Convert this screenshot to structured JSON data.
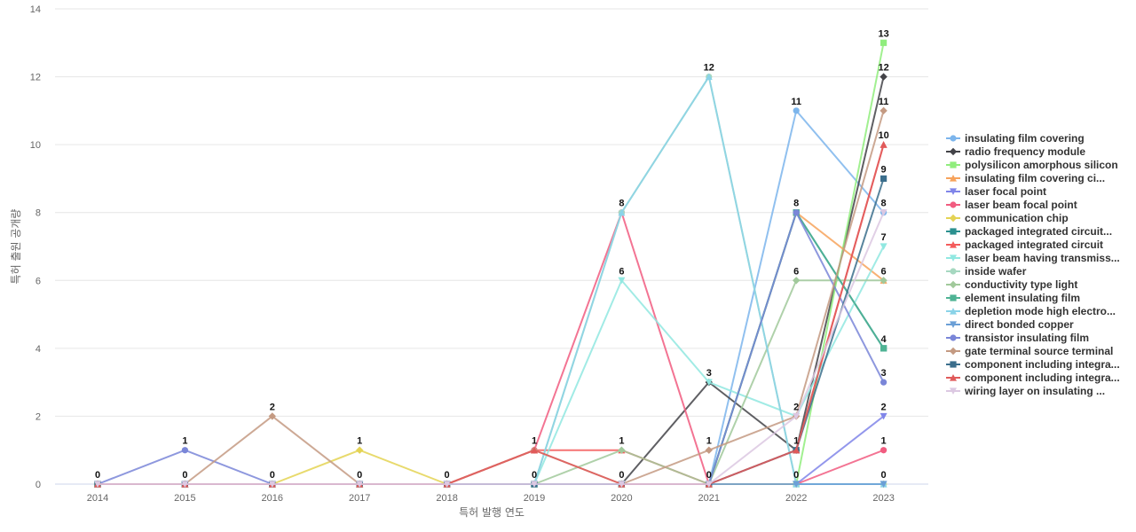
{
  "chart_data": {
    "type": "line",
    "title": "",
    "xlabel": "특허 발행 연도",
    "ylabel": "특허 출원 공개량",
    "x": [
      "2014",
      "2015",
      "2016",
      "2017",
      "2018",
      "2019",
      "2020",
      "2021",
      "2022",
      "2023"
    ],
    "ylim": [
      0,
      14
    ],
    "yticks": [
      0,
      2,
      4,
      6,
      8,
      10,
      12,
      14
    ],
    "grid": true,
    "legend_position": "right",
    "series": [
      {
        "name": "insulating film covering",
        "color": "#7cb5ec",
        "marker": "circle",
        "values": [
          0,
          0,
          0,
          0,
          0,
          0,
          0,
          0,
          11,
          8
        ]
      },
      {
        "name": "radio frequency module",
        "color": "#434348",
        "marker": "diamond",
        "values": [
          0,
          0,
          0,
          0,
          0,
          0,
          0,
          3,
          1,
          12
        ]
      },
      {
        "name": "polysilicon amorphous silicon",
        "color": "#90ed7d",
        "marker": "square",
        "values": [
          0,
          0,
          0,
          0,
          0,
          0,
          0,
          0,
          0,
          13
        ]
      },
      {
        "name": "insulating film covering ci...",
        "color": "#f7a35c",
        "marker": "triangle",
        "values": [
          0,
          0,
          0,
          0,
          0,
          0,
          0,
          0,
          8,
          6
        ]
      },
      {
        "name": "laser focal point",
        "color": "#8085e9",
        "marker": "triangle-down",
        "values": [
          0,
          0,
          0,
          0,
          0,
          0,
          0,
          0,
          0,
          2
        ]
      },
      {
        "name": "laser beam focal point",
        "color": "#f15c80",
        "marker": "circle",
        "values": [
          0,
          0,
          0,
          0,
          0,
          1,
          8,
          0,
          0,
          1
        ]
      },
      {
        "name": "communication chip",
        "color": "#e4d354",
        "marker": "diamond",
        "values": [
          0,
          0,
          0,
          1,
          0,
          0,
          0,
          0,
          0,
          0
        ]
      },
      {
        "name": "packaged integrated circuit...",
        "color": "#2b908f",
        "marker": "square",
        "values": [
          0,
          0,
          0,
          0,
          0,
          0,
          0,
          0,
          8,
          4
        ]
      },
      {
        "name": "packaged integrated circuit",
        "color": "#f45b5b",
        "marker": "triangle",
        "values": [
          0,
          0,
          0,
          0,
          0,
          1,
          1,
          0,
          1,
          10
        ]
      },
      {
        "name": "laser beam having transmiss...",
        "color": "#91e8e1",
        "marker": "triangle-down",
        "values": [
          0,
          0,
          0,
          0,
          0,
          0,
          6,
          3,
          2,
          7
        ]
      },
      {
        "name": "inside wafer",
        "color": "#a6d8c0",
        "marker": "circle",
        "values": [
          0,
          0,
          0,
          0,
          0,
          0,
          8,
          12,
          0,
          0
        ]
      },
      {
        "name": "conductivity type light",
        "color": "#a1c99b",
        "marker": "diamond",
        "values": [
          0,
          0,
          0,
          0,
          0,
          0,
          1,
          0,
          6,
          6
        ]
      },
      {
        "name": "element insulating film",
        "color": "#4fb394",
        "marker": "square",
        "values": [
          0,
          0,
          0,
          0,
          0,
          0,
          0,
          0,
          8,
          4
        ]
      },
      {
        "name": "depletion mode high electro...",
        "color": "#8ad3e8",
        "marker": "triangle",
        "values": [
          0,
          0,
          0,
          0,
          0,
          0,
          8,
          12,
          0,
          0
        ]
      },
      {
        "name": "direct bonded copper",
        "color": "#6b9fd6",
        "marker": "triangle-down",
        "values": [
          0,
          0,
          0,
          0,
          0,
          0,
          0,
          0,
          0,
          0
        ]
      },
      {
        "name": "transistor insulating film",
        "color": "#7a86d8",
        "marker": "circle",
        "values": [
          0,
          1,
          0,
          0,
          0,
          0,
          0,
          0,
          8,
          3
        ]
      },
      {
        "name": "gate terminal source terminal",
        "color": "#c49a82",
        "marker": "diamond",
        "values": [
          0,
          0,
          2,
          0,
          0,
          1,
          0,
          1,
          2,
          11
        ]
      },
      {
        "name": "component including integra...",
        "color": "#3b6e8c",
        "marker": "square",
        "values": [
          0,
          0,
          0,
          0,
          0,
          0,
          0,
          0,
          1,
          9
        ]
      },
      {
        "name": "component including integra...",
        "color": "#e05a5a",
        "marker": "triangle",
        "values": [
          0,
          0,
          0,
          0,
          0,
          1,
          0,
          0,
          1,
          10
        ]
      },
      {
        "name": "wiring layer on insulating ...",
        "color": "#dcc8e2",
        "marker": "triangle-down",
        "values": [
          0,
          0,
          0,
          0,
          0,
          0,
          0,
          0,
          2,
          8
        ]
      }
    ],
    "data_labels": [
      {
        "x": "2014",
        "y": 0,
        "text": "0"
      },
      {
        "x": "2015",
        "y": 1,
        "text": "1"
      },
      {
        "x": "2015",
        "y": 0,
        "text": "0"
      },
      {
        "x": "2016",
        "y": 2,
        "text": "2"
      },
      {
        "x": "2016",
        "y": 0,
        "text": "0"
      },
      {
        "x": "2017",
        "y": 1,
        "text": "1"
      },
      {
        "x": "2017",
        "y": 0,
        "text": "0"
      },
      {
        "x": "2018",
        "y": 0,
        "text": "0"
      },
      {
        "x": "2019",
        "y": 1,
        "text": "1"
      },
      {
        "x": "2019",
        "y": 0,
        "text": "0"
      },
      {
        "x": "2020",
        "y": 8,
        "text": "8"
      },
      {
        "x": "2020",
        "y": 6,
        "text": "6"
      },
      {
        "x": "2020",
        "y": 1,
        "text": "1"
      },
      {
        "x": "2020",
        "y": 0,
        "text": "0"
      },
      {
        "x": "2021",
        "y": 12,
        "text": "12"
      },
      {
        "x": "2021",
        "y": 3,
        "text": "3"
      },
      {
        "x": "2021",
        "y": 1,
        "text": "1"
      },
      {
        "x": "2021",
        "y": 0,
        "text": "0"
      },
      {
        "x": "2022",
        "y": 11,
        "text": "11"
      },
      {
        "x": "2022",
        "y": 8,
        "text": "8"
      },
      {
        "x": "2022",
        "y": 6,
        "text": "6"
      },
      {
        "x": "2022",
        "y": 2,
        "text": "2"
      },
      {
        "x": "2022",
        "y": 1,
        "text": "1"
      },
      {
        "x": "2022",
        "y": 0,
        "text": "0"
      },
      {
        "x": "2023",
        "y": 13,
        "text": "13"
      },
      {
        "x": "2023",
        "y": 12,
        "text": "12"
      },
      {
        "x": "2023",
        "y": 11,
        "text": "11"
      },
      {
        "x": "2023",
        "y": 10,
        "text": "10"
      },
      {
        "x": "2023",
        "y": 9,
        "text": "9"
      },
      {
        "x": "2023",
        "y": 8,
        "text": "8"
      },
      {
        "x": "2023",
        "y": 7,
        "text": "7"
      },
      {
        "x": "2023",
        "y": 6,
        "text": "6"
      },
      {
        "x": "2023",
        "y": 4,
        "text": "4"
      },
      {
        "x": "2023",
        "y": 3,
        "text": "3"
      },
      {
        "x": "2023",
        "y": 2,
        "text": "2"
      },
      {
        "x": "2023",
        "y": 1,
        "text": "1"
      },
      {
        "x": "2023",
        "y": 0,
        "text": "0"
      }
    ]
  }
}
